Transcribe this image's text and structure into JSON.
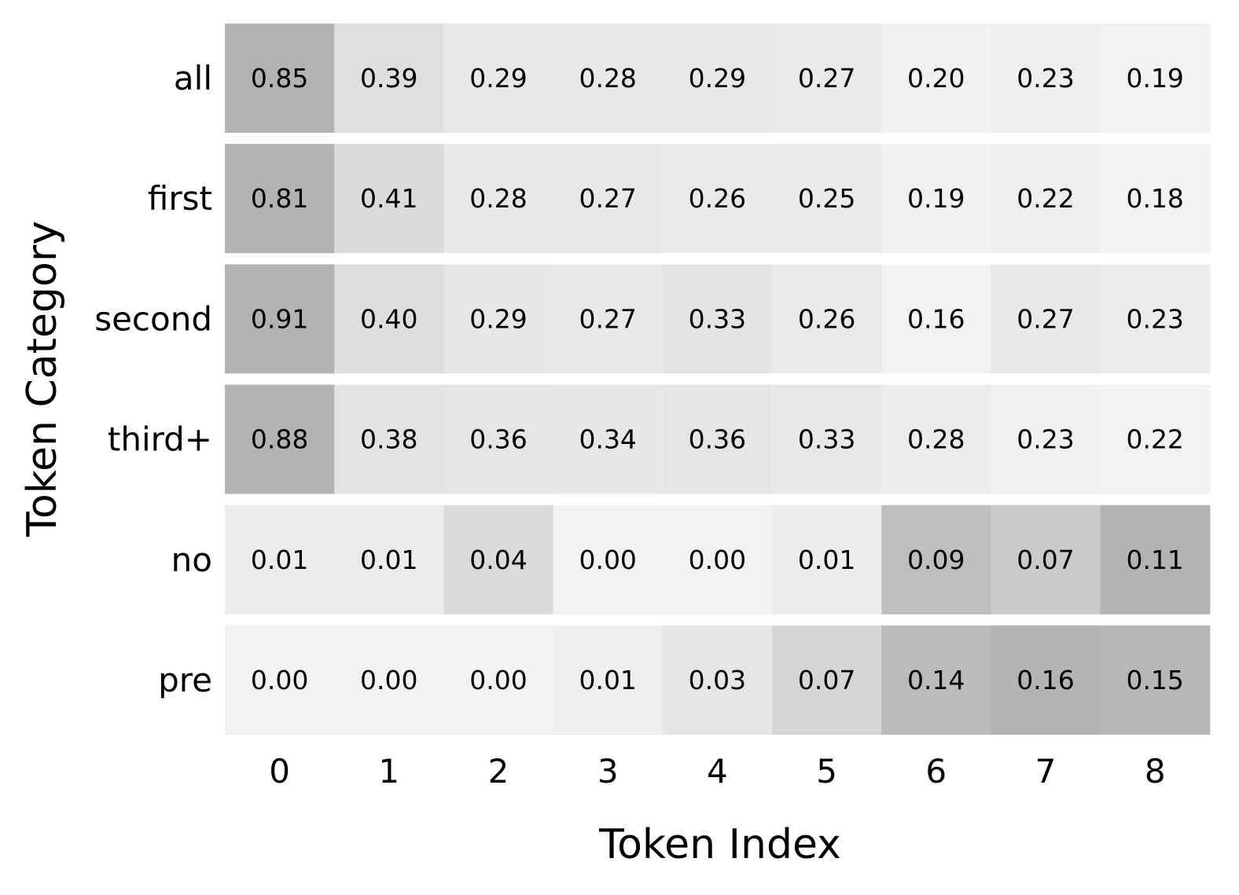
{
  "chart_data": {
    "type": "heatmap",
    "title": "",
    "xlabel": "Token Index",
    "ylabel": "Token Category",
    "x_categories": [
      "0",
      "1",
      "2",
      "3",
      "4",
      "5",
      "6",
      "7",
      "8"
    ],
    "y_categories": [
      "all",
      "first",
      "second",
      "third+",
      "no",
      "pre"
    ],
    "values": [
      [
        0.85,
        0.39,
        0.29,
        0.28,
        0.29,
        0.27,
        0.2,
        0.23,
        0.19
      ],
      [
        0.81,
        0.41,
        0.28,
        0.27,
        0.26,
        0.25,
        0.19,
        0.22,
        0.18
      ],
      [
        0.91,
        0.4,
        0.29,
        0.27,
        0.33,
        0.26,
        0.16,
        0.27,
        0.23
      ],
      [
        0.88,
        0.38,
        0.36,
        0.34,
        0.36,
        0.33,
        0.28,
        0.23,
        0.22
      ],
      [
        0.01,
        0.01,
        0.04,
        0.0,
        0.0,
        0.01,
        0.09,
        0.07,
        0.11
      ],
      [
        0.0,
        0.0,
        0.0,
        0.01,
        0.03,
        0.07,
        0.14,
        0.16,
        0.15
      ]
    ],
    "value_format": "0.00",
    "color_scale": "per-row grayscale",
    "color_low": "#f2f2f2",
    "color_high": "#b3b3b3",
    "grid": false,
    "legend": "none"
  }
}
